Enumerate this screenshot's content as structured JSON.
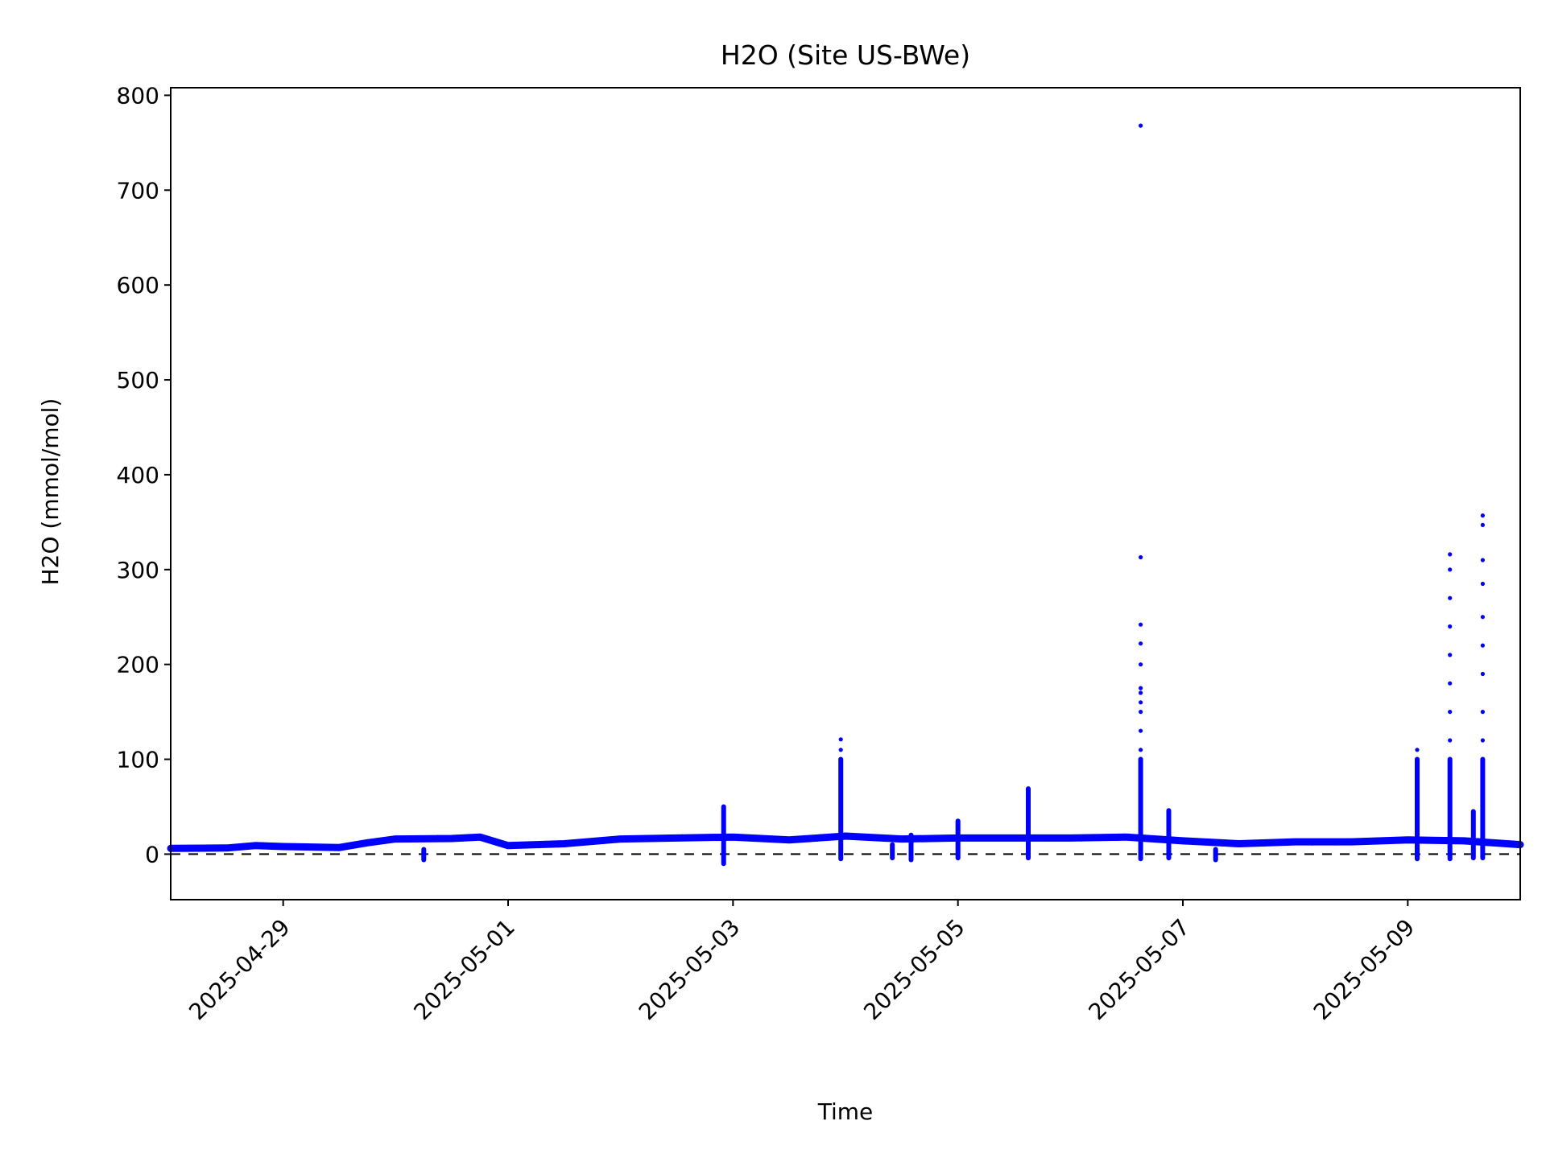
{
  "chart_data": {
    "type": "scatter",
    "title": "H2O (Site US-BWe)",
    "xlabel": "Time",
    "ylabel": "H2O (mmol/mol)",
    "xlim": [
      "2025-04-28T00:00",
      "2025-05-10T00:00"
    ],
    "ylim": [
      -48,
      808
    ],
    "x_ticks": [
      "2025-04-29",
      "2025-05-01",
      "2025-05-03",
      "2025-05-05",
      "2025-05-07",
      "2025-05-09"
    ],
    "y_ticks": [
      0,
      100,
      200,
      300,
      400,
      500,
      600,
      700,
      800
    ],
    "grid": false,
    "legend": "none",
    "reference_line": {
      "y": 0,
      "style": "dashed",
      "color": "#000000"
    },
    "series": [
      {
        "color": "#0000ff",
        "marker": "dot",
        "baseline": [
          [
            "2025-04-28T00:00",
            6
          ],
          [
            "2025-04-28T12:00",
            6.5
          ],
          [
            "2025-04-28T18:00",
            9
          ],
          [
            "2025-04-29T00:00",
            8
          ],
          [
            "2025-04-29T12:00",
            7
          ],
          [
            "2025-04-29T18:00",
            12
          ],
          [
            "2025-04-30T00:00",
            16
          ],
          [
            "2025-04-30T12:00",
            16.5
          ],
          [
            "2025-04-30T18:00",
            18
          ],
          [
            "2025-05-01T00:00",
            9
          ],
          [
            "2025-05-01T12:00",
            11
          ],
          [
            "2025-05-02T00:00",
            16
          ],
          [
            "2025-05-02T12:00",
            17
          ],
          [
            "2025-05-03T00:00",
            18
          ],
          [
            "2025-05-03T12:00",
            15
          ],
          [
            "2025-05-04T00:00",
            19
          ],
          [
            "2025-05-04T12:00",
            16
          ],
          [
            "2025-05-05T00:00",
            17
          ],
          [
            "2025-05-06T00:00",
            17
          ],
          [
            "2025-05-06T12:00",
            18
          ],
          [
            "2025-05-07T00:00",
            14
          ],
          [
            "2025-05-07T12:00",
            11
          ],
          [
            "2025-05-08T00:00",
            13
          ],
          [
            "2025-05-08T12:00",
            13
          ],
          [
            "2025-05-09T00:00",
            15
          ],
          [
            "2025-05-09T12:00",
            14
          ],
          [
            "2025-05-10T00:00",
            10
          ]
        ],
        "spikes": [
          {
            "x": "2025-04-30T06:00",
            "values": [
              -6,
              -4,
              0,
              5
            ]
          },
          {
            "x": "2025-05-02T22:00",
            "values": [
              -10,
              -5,
              0,
              20,
              30,
              40,
              50
            ]
          },
          {
            "x": "2025-05-03T23:00",
            "values": [
              -5,
              0,
              20,
              40,
              58,
              60,
              68,
              78,
              88,
              110,
              121
            ]
          },
          {
            "x": "2025-05-04T10:00",
            "values": [
              -4,
              0,
              5,
              10
            ]
          },
          {
            "x": "2025-05-04T14:00",
            "values": [
              -6,
              0,
              10,
              20
            ]
          },
          {
            "x": "2025-05-05T00:00",
            "values": [
              -4,
              0,
              20,
              30,
              35
            ]
          },
          {
            "x": "2025-05-05T15:00",
            "values": [
              -4,
              0,
              20,
              40,
              50,
              60,
              69
            ]
          },
          {
            "x": "2025-05-06T15:00",
            "values": [
              -5,
              0,
              30,
              60,
              90,
              100,
              110,
              130,
              150,
              160,
              170,
              175,
              200,
              222,
              242,
              313,
              768
            ]
          },
          {
            "x": "2025-05-06T21:00",
            "values": [
              -4,
              0,
              20,
              40,
              46
            ]
          },
          {
            "x": "2025-05-07T07:00",
            "values": [
              -6,
              -3,
              0,
              5
            ]
          },
          {
            "x": "2025-05-09T02:00",
            "values": [
              -5,
              0,
              20,
              40,
              60,
              80,
              100,
              110
            ]
          },
          {
            "x": "2025-05-09T09:00",
            "values": [
              -5,
              0,
              30,
              60,
              90,
              120,
              150,
              180,
              210,
              240,
              270,
              300,
              316
            ]
          },
          {
            "x": "2025-05-09T14:00",
            "values": [
              -4,
              0,
              10,
              20,
              30,
              45
            ]
          },
          {
            "x": "2025-05-09T16:00",
            "values": [
              -4,
              0,
              30,
              60,
              90,
              120,
              150,
              190,
              220,
              250,
              285,
              310,
              347,
              357
            ]
          }
        ]
      }
    ]
  }
}
